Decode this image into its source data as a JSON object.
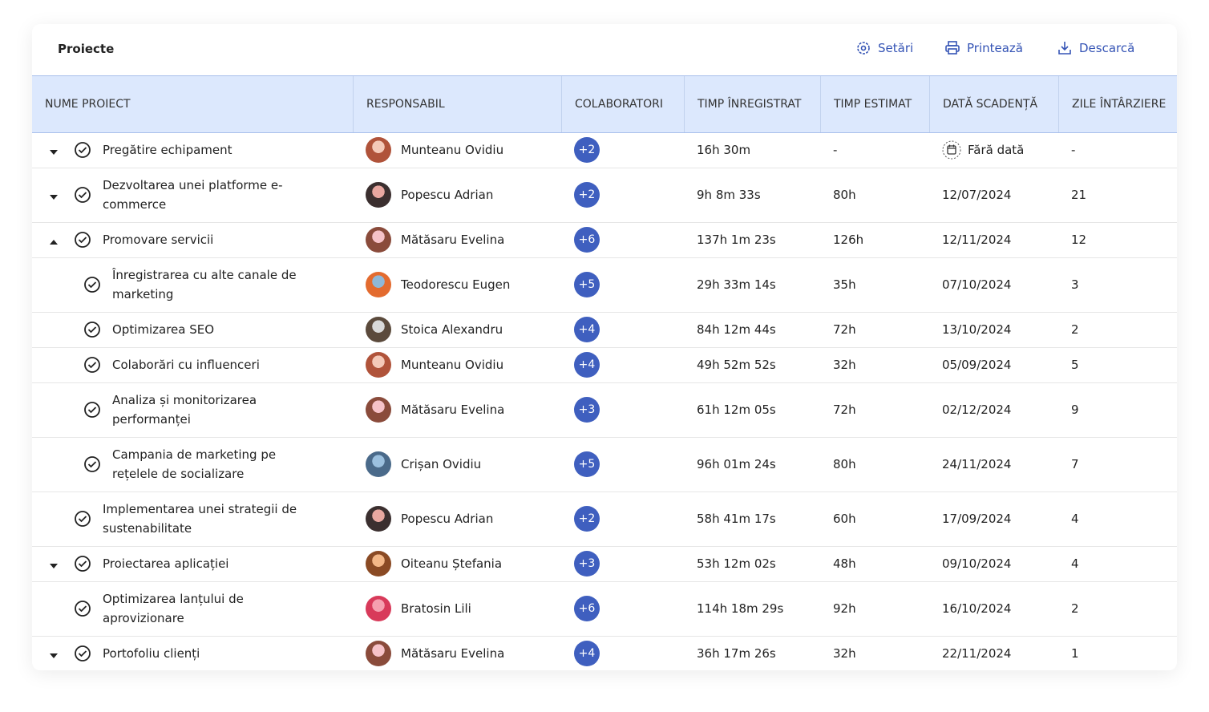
{
  "header": {
    "title": "Proiecte",
    "actions": [
      "Setări",
      "Printează",
      "Descarcă"
    ]
  },
  "table": {
    "columns": [
      "NUME PROIECT",
      "RESPONSABIL",
      "COLABORATORI",
      "TIMP ÎNREGISTRAT",
      "TIMP ESTIMAT",
      "DATĂ SCADENȚĂ",
      "ZILE ÎNTÂRZIERE"
    ],
    "rows": [
      {
        "name": "Pregătire echipament",
        "responsible": "Munteanu Ovidiu",
        "collaborators": "+2",
        "time_logged": "16h 30m",
        "time_estimated": "-",
        "due_date": "Fără dată",
        "delay_days": "-"
      },
      {
        "name": "Dezvoltarea unei platforme e-commerce",
        "responsible": "Popescu Adrian",
        "collaborators": "+2",
        "time_logged": "9h 8m 33s",
        "time_estimated": "80h",
        "due_date": "12/07/2024",
        "delay_days": "21"
      },
      {
        "name": "Promovare servicii",
        "responsible": "Mătăsaru Evelina",
        "collaborators": "+6",
        "time_logged": "137h 1m 23s",
        "time_estimated": "126h",
        "due_date": "12/11/2024",
        "delay_days": "12"
      },
      {
        "name": "Înregistrarea cu alte canale de marketing",
        "responsible": "Teodorescu Eugen",
        "collaborators": "+5",
        "time_logged": "29h 33m 14s",
        "time_estimated": "35h",
        "due_date": "07/10/2024",
        "delay_days": "3"
      },
      {
        "name": "Optimizarea SEO",
        "responsible": "Stoica Alexandru",
        "collaborators": "+4",
        "time_logged": "84h 12m 44s",
        "time_estimated": "72h",
        "due_date": "13/10/2024",
        "delay_days": "2"
      },
      {
        "name": "Colaborări cu influenceri",
        "responsible": "Munteanu Ovidiu",
        "collaborators": "+4",
        "time_logged": "49h 52m 52s",
        "time_estimated": "32h",
        "due_date": "05/09/2024",
        "delay_days": "5"
      },
      {
        "name": "Analiza și monitorizarea performanței",
        "responsible": "Mătăsaru Evelina",
        "collaborators": "+3",
        "time_logged": "61h 12m 05s",
        "time_estimated": "72h",
        "due_date": "02/12/2024",
        "delay_days": "9"
      },
      {
        "name": "Campania de marketing pe rețelele de socializare",
        "responsible": "Crișan Ovidiu",
        "collaborators": "+5",
        "time_logged": "96h 01m 24s",
        "time_estimated": "80h",
        "due_date": "24/11/2024",
        "delay_days": "7"
      },
      {
        "name": "Implementarea unei strategii de sustenabilitate",
        "responsible": "Popescu Adrian",
        "collaborators": "+2",
        "time_logged": "58h 41m 17s",
        "time_estimated": "60h",
        "due_date": "17/09/2024",
        "delay_days": "4"
      },
      {
        "name": "Proiectarea aplicației",
        "responsible": "Oiteanu Ștefania",
        "collaborators": "+3",
        "time_logged": "53h 12m 02s",
        "time_estimated": "48h",
        "due_date": "09/10/2024",
        "delay_days": "4"
      },
      {
        "name": "Optimizarea lanțului de aprovizionare",
        "responsible": "Bratosin Lili",
        "collaborators": "+6",
        "time_logged": "114h 18m 29s",
        "time_estimated": "92h",
        "due_date": "16/10/2024",
        "delay_days": "2"
      },
      {
        "name": "Portofoliu clienți",
        "responsible": "Mătăsaru Evelina",
        "collaborators": "+4",
        "time_logged": "36h 17m 26s",
        "time_estimated": "32h",
        "due_date": "22/11/2024",
        "delay_days": "1"
      }
    ]
  }
}
